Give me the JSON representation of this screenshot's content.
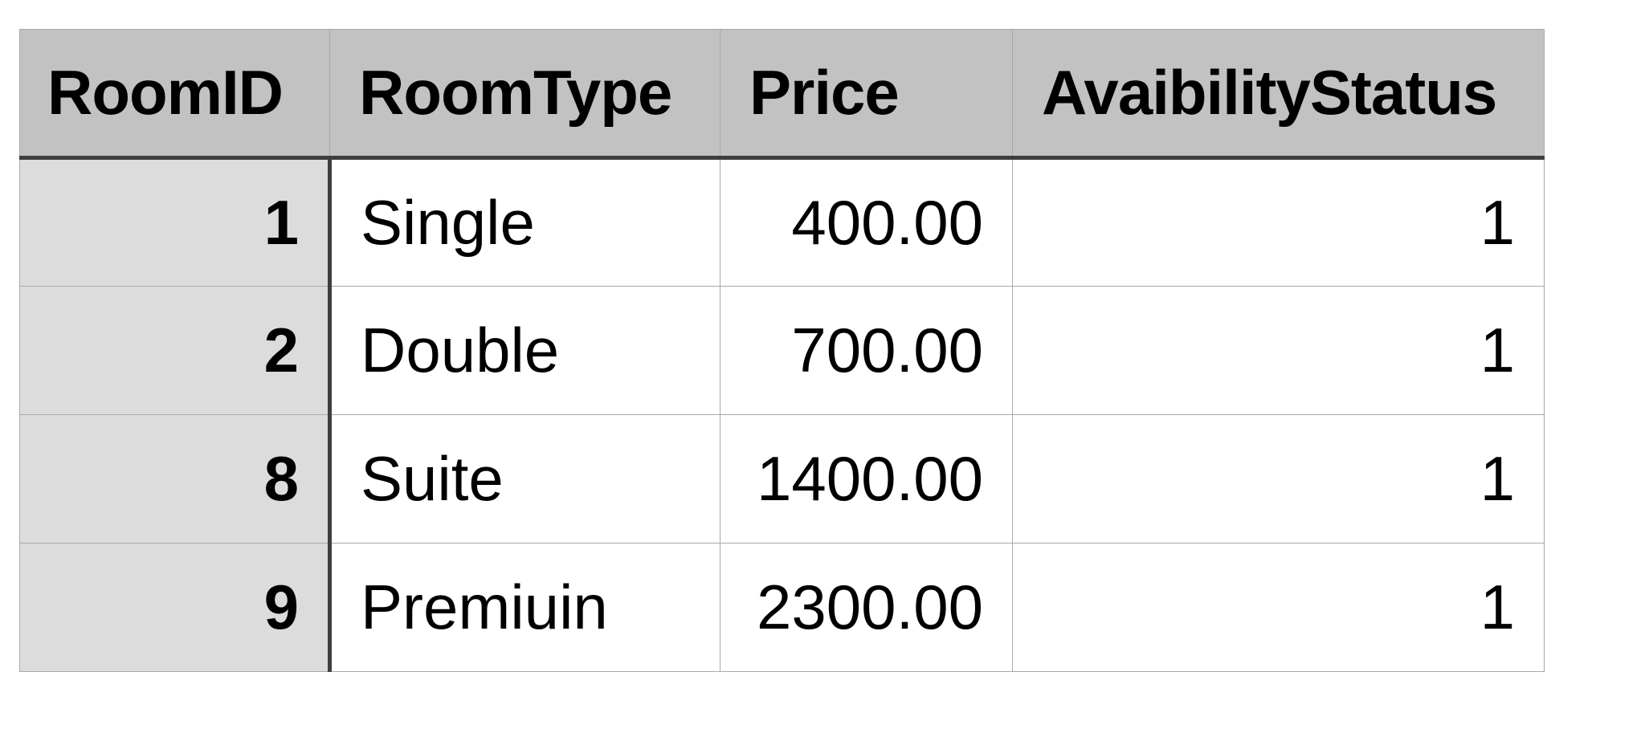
{
  "table": {
    "columns": [
      "RoomID",
      "RoomType",
      "Price",
      "AvaibilityStatus"
    ],
    "rows": [
      {
        "room_id": "1",
        "room_type": "Single",
        "price": "400.00",
        "status": "1"
      },
      {
        "room_id": "2",
        "room_type": "Double",
        "price": "700.00",
        "status": "1"
      },
      {
        "room_id": "8",
        "room_type": "Suite",
        "price": "1400.00",
        "status": "1"
      },
      {
        "room_id": "9",
        "room_type": "Premiuin",
        "price": "2300.00",
        "status": "1"
      }
    ]
  },
  "colors": {
    "header_bg": "#c1c2c1",
    "id_column_bg": "#dcdcdc",
    "cell_bg": "#ffffff",
    "grid_line": "#a9a9a9",
    "strong_border": "#3e3e3e"
  }
}
